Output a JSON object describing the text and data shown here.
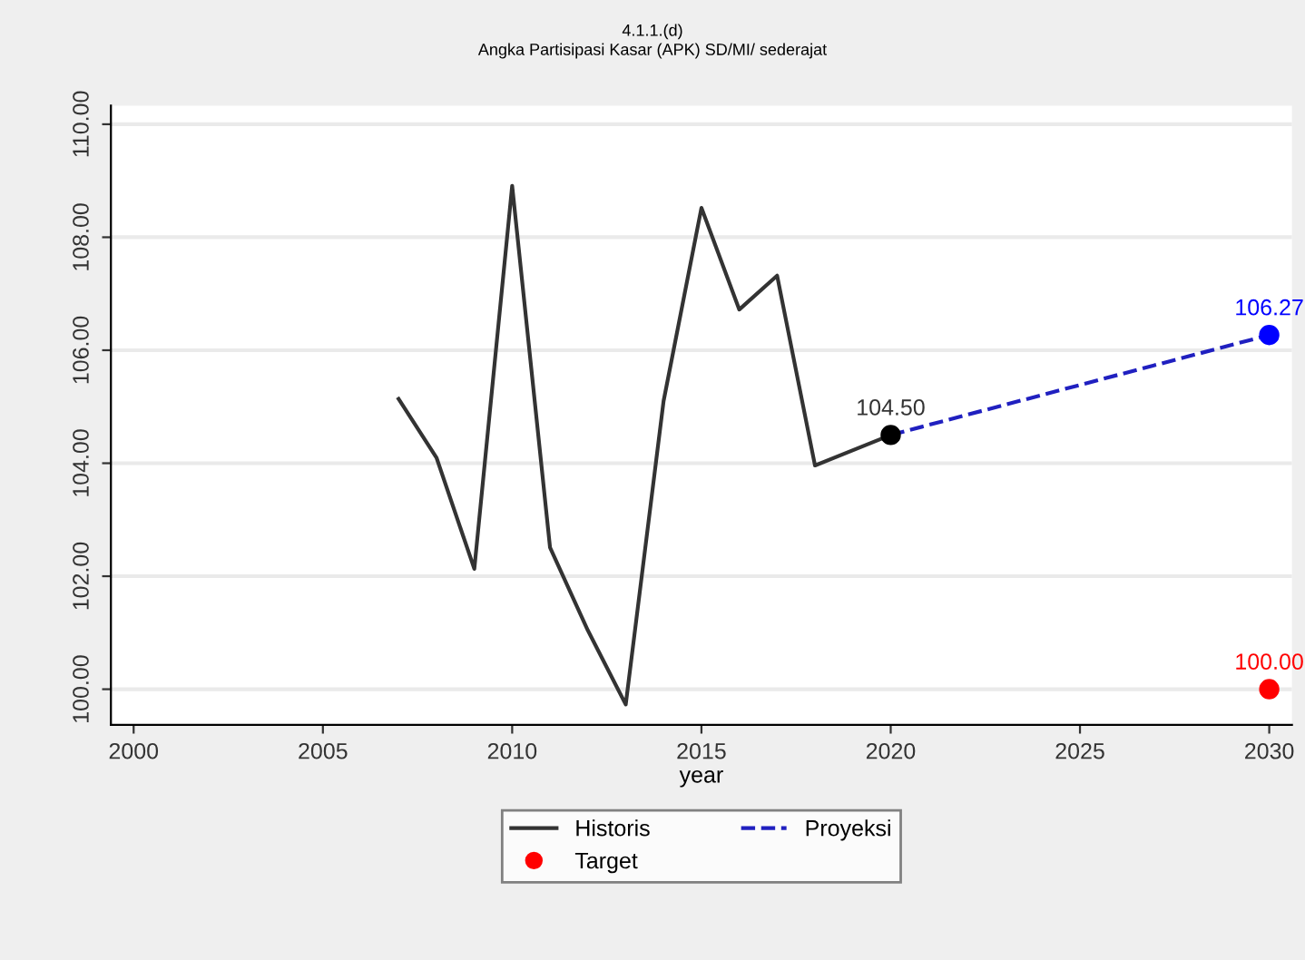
{
  "chart_data": {
    "type": "line",
    "title": "4.1.1.(d)",
    "subtitle": "Angka Partisipasi Kasar (APK) SD/MI/ sederajat",
    "xlabel": "year",
    "xlim": [
      1999.4,
      2030.6
    ],
    "xticks": [
      2000,
      2005,
      2010,
      2015,
      2020,
      2025,
      2030
    ],
    "ylim": [
      99.37,
      110.33
    ],
    "yticks": [
      {
        "value": 100,
        "label": "100.00"
      },
      {
        "value": 102,
        "label": "102.00"
      },
      {
        "value": 104,
        "label": "104.00"
      },
      {
        "value": 106,
        "label": "106.00"
      },
      {
        "value": 108,
        "label": "108.00"
      },
      {
        "value": 110,
        "label": "110.00"
      }
    ],
    "grid": "y",
    "legend": "bottom",
    "series": [
      {
        "name": "Historis",
        "color": "#333333",
        "line_style": "solid",
        "x": [
          2007,
          2008,
          2009,
          2010,
          2011,
          2012,
          2013,
          2014,
          2015,
          2016,
          2017,
          2018,
          2020
        ],
        "values": [
          105.14,
          104.1,
          102.13,
          108.91,
          102.51,
          101.04,
          99.73,
          105.1,
          108.52,
          106.72,
          107.32,
          103.96,
          104.5
        ]
      },
      {
        "name": "Proyeksi",
        "color": "#2020c0",
        "line_style": "dashed",
        "x": [
          2020,
          2030
        ],
        "values": [
          104.5,
          106.27
        ]
      },
      {
        "type": "scatter",
        "color": "#000000",
        "marker": "circle",
        "x": [
          2020
        ],
        "values": [
          104.5
        ],
        "value_labels": [
          "104.50"
        ]
      },
      {
        "type": "scatter",
        "color": "#0000ff",
        "marker": "circle",
        "x": [
          2030
        ],
        "values": [
          106.27
        ],
        "value_labels": [
          "106.27"
        ]
      },
      {
        "name": "Target",
        "type": "scatter",
        "color": "#ff0000",
        "marker": "circle",
        "x": [
          2030
        ],
        "values": [
          100.0
        ],
        "value_labels": [
          "100.00"
        ]
      }
    ]
  }
}
